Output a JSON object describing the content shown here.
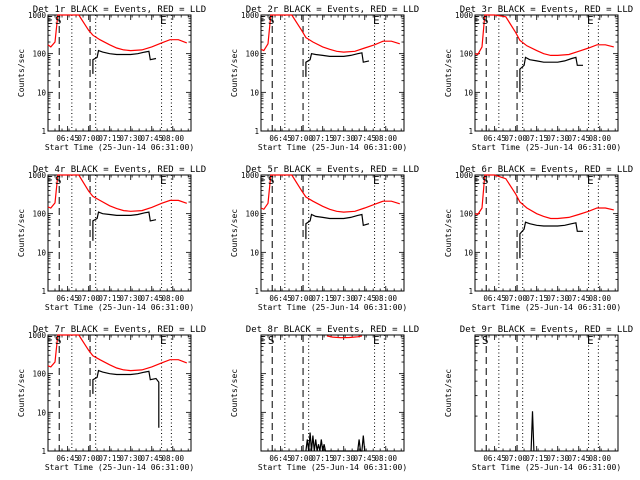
{
  "figure": {
    "xlabel": "Start Time (25-Jun-14 06:31:00)",
    "ylabel": "Counts/sec",
    "colors": {
      "events": "#000000",
      "lld": "#ff0000",
      "background": "#ffffff"
    }
  },
  "chart_data": [
    {
      "type": "line",
      "title": "Det 1r BLACK = Events, RED = LLD",
      "xlim": [
        "06:31",
        "08:13"
      ],
      "ylim": [
        1,
        1000
      ],
      "yscale": "log",
      "xticks": [
        "06:45",
        "07:00",
        "07:15",
        "07:30",
        "07:45",
        "08:00"
      ],
      "yticks": [
        "1",
        "10",
        "100",
        "1000"
      ],
      "markers": [
        {
          "text": "E",
          "x": "06:32"
        },
        {
          "text": "S",
          "x": "06:38"
        },
        {
          "text": "E",
          "x": "07:53"
        }
      ],
      "dashed_lines": [
        "06:39",
        "07:01"
      ],
      "dotted_lines": [
        "06:48",
        "07:05",
        "07:52",
        "07:59"
      ],
      "series": [
        {
          "color": "#ff0000",
          "x": [
            "06:31",
            "06:33",
            "06:36",
            "06:38",
            "06:40",
            "06:45",
            "06:53",
            "07:00",
            "07:03",
            "07:08",
            "07:15",
            "07:20",
            "07:25",
            "07:30",
            "07:38",
            "07:45",
            "07:52",
            "07:58",
            "08:04",
            "08:10"
          ],
          "y": [
            170,
            150,
            200,
            1000,
            1000,
            1000,
            1000,
            400,
            300,
            230,
            170,
            140,
            125,
            120,
            125,
            150,
            190,
            230,
            230,
            190
          ]
        },
        {
          "color": "#000000",
          "x": [
            "07:03",
            "07:03",
            "07:06",
            "07:07",
            "07:10",
            "07:15",
            "07:20",
            "07:25",
            "07:30",
            "07:35",
            "07:40",
            "07:43",
            "07:44",
            "07:48"
          ],
          "y": [
            30,
            70,
            80,
            120,
            110,
            100,
            95,
            95,
            95,
            100,
            110,
            115,
            70,
            75
          ]
        }
      ]
    },
    {
      "type": "line",
      "title": "Det 2r BLACK = Events, RED = LLD",
      "xlim": [
        "06:31",
        "08:13"
      ],
      "ylim": [
        1,
        1000
      ],
      "yscale": "log",
      "xticks": [
        "06:45",
        "07:00",
        "07:15",
        "07:30",
        "07:45",
        "08:00"
      ],
      "yticks": [
        "1",
        "10",
        "100",
        "1000"
      ],
      "markers": [
        {
          "text": "E",
          "x": "06:32"
        },
        {
          "text": "S",
          "x": "06:38"
        },
        {
          "text": "E",
          "x": "07:53"
        }
      ],
      "dashed_lines": [
        "06:39",
        "07:01"
      ],
      "dotted_lines": [
        "06:48",
        "07:05",
        "07:52",
        "07:59"
      ],
      "series": [
        {
          "color": "#ff0000",
          "x": [
            "06:31",
            "06:33",
            "06:36",
            "06:38",
            "06:40",
            "06:45",
            "06:53",
            "07:00",
            "07:03",
            "07:08",
            "07:15",
            "07:20",
            "07:25",
            "07:30",
            "07:38",
            "07:45",
            "07:52",
            "07:58",
            "08:04",
            "08:10"
          ],
          "y": [
            130,
            120,
            180,
            1000,
            1000,
            1000,
            1000,
            400,
            260,
            200,
            150,
            130,
            115,
            110,
            115,
            140,
            170,
            210,
            210,
            180
          ]
        },
        {
          "color": "#000000",
          "x": [
            "07:03",
            "07:03",
            "07:06",
            "07:07",
            "07:10",
            "07:15",
            "07:20",
            "07:25",
            "07:30",
            "07:35",
            "07:40",
            "07:43",
            "07:44",
            "07:48"
          ],
          "y": [
            25,
            60,
            70,
            100,
            95,
            90,
            85,
            85,
            85,
            90,
            100,
            105,
            60,
            65
          ]
        }
      ]
    },
    {
      "type": "line",
      "title": "Det 3r BLACK = Events, RED = LLD",
      "xlim": [
        "06:31",
        "08:13"
      ],
      "ylim": [
        1,
        1000
      ],
      "yscale": "log",
      "xticks": [
        "06:45",
        "07:00",
        "07:15",
        "07:30",
        "07:45",
        "08:00"
      ],
      "yticks": [
        "1",
        "10",
        "100",
        "1000"
      ],
      "markers": [
        {
          "text": "E",
          "x": "06:32"
        },
        {
          "text": "S",
          "x": "06:38"
        },
        {
          "text": "E",
          "x": "07:53"
        }
      ],
      "dashed_lines": [
        "06:39",
        "07:01"
      ],
      "dotted_lines": [
        "06:48",
        "07:05",
        "07:52",
        "07:59"
      ],
      "series": [
        {
          "color": "#ff0000",
          "x": [
            "06:31",
            "06:33",
            "06:36",
            "06:38",
            "06:40",
            "06:45",
            "06:53",
            "07:00",
            "07:03",
            "07:08",
            "07:15",
            "07:20",
            "07:25",
            "07:30",
            "07:38",
            "07:45",
            "07:52",
            "07:58",
            "08:04",
            "08:10"
          ],
          "y": [
            100,
            95,
            150,
            1000,
            1000,
            1000,
            900,
            350,
            220,
            160,
            120,
            100,
            90,
            90,
            95,
            115,
            140,
            170,
            170,
            150
          ]
        },
        {
          "color": "#000000",
          "x": [
            "07:03",
            "07:03",
            "07:06",
            "07:07",
            "07:10",
            "07:15",
            "07:20",
            "07:25",
            "07:30",
            "07:35",
            "07:40",
            "07:43",
            "07:44",
            "07:48"
          ],
          "y": [
            10,
            40,
            50,
            80,
            70,
            65,
            60,
            60,
            60,
            65,
            75,
            80,
            50,
            50
          ]
        }
      ]
    },
    {
      "type": "line",
      "title": "Det 4r BLACK = Events, RED = LLD",
      "xlim": [
        "06:31",
        "08:13"
      ],
      "ylim": [
        1,
        1000
      ],
      "yscale": "log",
      "xticks": [
        "06:45",
        "07:00",
        "07:15",
        "07:30",
        "07:45",
        "08:00"
      ],
      "yticks": [
        "1",
        "10",
        "100",
        "1000"
      ],
      "markers": [
        {
          "text": "E",
          "x": "06:32"
        },
        {
          "text": "S",
          "x": "06:38"
        },
        {
          "text": "E",
          "x": "07:53"
        }
      ],
      "dashed_lines": [
        "06:39",
        "07:01"
      ],
      "dotted_lines": [
        "06:48",
        "07:05",
        "07:52",
        "07:59"
      ],
      "series": [
        {
          "color": "#ff0000",
          "x": [
            "06:31",
            "06:33",
            "06:36",
            "06:38",
            "06:40",
            "06:45",
            "06:53",
            "07:00",
            "07:03",
            "07:08",
            "07:15",
            "07:20",
            "07:25",
            "07:30",
            "07:38",
            "07:45",
            "07:52",
            "07:58",
            "08:04",
            "08:10"
          ],
          "y": [
            150,
            140,
            190,
            1000,
            1000,
            1000,
            1000,
            380,
            280,
            220,
            160,
            135,
            120,
            115,
            120,
            145,
            185,
            220,
            220,
            185
          ]
        },
        {
          "color": "#000000",
          "x": [
            "07:03",
            "07:03",
            "07:06",
            "07:07",
            "07:10",
            "07:15",
            "07:20",
            "07:25",
            "07:30",
            "07:35",
            "07:40",
            "07:43",
            "07:44",
            "07:48"
          ],
          "y": [
            20,
            65,
            75,
            110,
            100,
            95,
            90,
            90,
            90,
            95,
            105,
            110,
            65,
            70
          ]
        }
      ]
    },
    {
      "type": "line",
      "title": "Det 5r BLACK = Events, RED = LLD",
      "xlim": [
        "06:31",
        "08:13"
      ],
      "ylim": [
        1,
        1000
      ],
      "yscale": "log",
      "xticks": [
        "06:45",
        "07:00",
        "07:15",
        "07:30",
        "07:45",
        "08:00"
      ],
      "yticks": [
        "1",
        "10",
        "100",
        "1000"
      ],
      "markers": [
        {
          "text": "E",
          "x": "06:32"
        },
        {
          "text": "S",
          "x": "06:38"
        },
        {
          "text": "E",
          "x": "07:53"
        }
      ],
      "dashed_lines": [
        "06:39",
        "07:01"
      ],
      "dotted_lines": [
        "06:48",
        "07:05",
        "07:52",
        "07:59"
      ],
      "series": [
        {
          "color": "#ff0000",
          "x": [
            "06:31",
            "06:33",
            "06:36",
            "06:38",
            "06:40",
            "06:45",
            "06:53",
            "07:00",
            "07:03",
            "07:08",
            "07:15",
            "07:20",
            "07:25",
            "07:30",
            "07:38",
            "07:45",
            "07:52",
            "07:58",
            "08:04",
            "08:10"
          ],
          "y": [
            140,
            130,
            185,
            1000,
            1000,
            1000,
            1000,
            390,
            270,
            210,
            155,
            130,
            115,
            110,
            115,
            140,
            175,
            210,
            210,
            180
          ]
        },
        {
          "color": "#000000",
          "x": [
            "07:03",
            "07:03",
            "07:06",
            "07:07",
            "07:10",
            "07:15",
            "07:20",
            "07:25",
            "07:30",
            "07:35",
            "07:40",
            "07:43",
            "07:44",
            "07:48"
          ],
          "y": [
            22,
            55,
            65,
            95,
            85,
            80,
            75,
            75,
            75,
            80,
            90,
            95,
            50,
            55
          ]
        }
      ]
    },
    {
      "type": "line",
      "title": "Det 6r BLACK = Events, RED = LLD",
      "xlim": [
        "06:31",
        "08:13"
      ],
      "ylim": [
        1,
        1000
      ],
      "yscale": "log",
      "xticks": [
        "06:45",
        "07:00",
        "07:15",
        "07:30",
        "07:45",
        "08:00"
      ],
      "yticks": [
        "1",
        "10",
        "100",
        "1000"
      ],
      "markers": [
        {
          "text": "E",
          "x": "06:32"
        },
        {
          "text": "S",
          "x": "06:38"
        },
        {
          "text": "E",
          "x": "07:53"
        }
      ],
      "dashed_lines": [
        "06:39",
        "07:01"
      ],
      "dotted_lines": [
        "06:48",
        "07:05",
        "07:52",
        "07:59"
      ],
      "series": [
        {
          "color": "#ff0000",
          "x": [
            "06:31",
            "06:33",
            "06:36",
            "06:38",
            "06:40",
            "06:45",
            "06:53",
            "07:00",
            "07:03",
            "07:08",
            "07:15",
            "07:20",
            "07:25",
            "07:30",
            "07:38",
            "07:45",
            "07:52",
            "07:58",
            "08:04",
            "08:10"
          ],
          "y": [
            100,
            95,
            140,
            1000,
            1000,
            1000,
            800,
            320,
            200,
            140,
            100,
            85,
            75,
            75,
            80,
            95,
            115,
            140,
            140,
            125
          ]
        },
        {
          "color": "#000000",
          "x": [
            "07:03",
            "07:03",
            "07:06",
            "07:07",
            "07:10",
            "07:15",
            "07:20",
            "07:25",
            "07:30",
            "07:35",
            "07:40",
            "07:43",
            "07:44",
            "07:48"
          ],
          "y": [
            7,
            30,
            40,
            60,
            55,
            50,
            48,
            48,
            48,
            50,
            55,
            58,
            35,
            35
          ]
        }
      ]
    },
    {
      "type": "line",
      "title": "Det 7r BLACK = Events, RED = LLD",
      "xlim": [
        "06:31",
        "08:13"
      ],
      "ylim": [
        1,
        1000
      ],
      "yscale": "log",
      "xticks": [
        "06:45",
        "07:00",
        "07:15",
        "07:30",
        "07:45",
        "08:00"
      ],
      "yticks": [
        "1",
        "10",
        "100",
        "1000"
      ],
      "markers": [
        {
          "text": "E",
          "x": "06:32"
        },
        {
          "text": "S",
          "x": "06:38"
        },
        {
          "text": "E",
          "x": "07:53"
        }
      ],
      "dashed_lines": [
        "06:39",
        "07:01"
      ],
      "dotted_lines": [
        "06:48",
        "07:05",
        "07:52",
        "07:59"
      ],
      "series": [
        {
          "color": "#ff0000",
          "x": [
            "06:31",
            "06:33",
            "06:36",
            "06:38",
            "06:40",
            "06:45",
            "06:53",
            "07:00",
            "07:03",
            "07:08",
            "07:15",
            "07:20",
            "07:25",
            "07:30",
            "07:38",
            "07:45",
            "07:52",
            "07:58",
            "08:04",
            "08:10"
          ],
          "y": [
            160,
            150,
            200,
            1000,
            1000,
            1000,
            1000,
            400,
            290,
            230,
            170,
            140,
            125,
            120,
            125,
            150,
            190,
            230,
            230,
            190
          ]
        },
        {
          "color": "#000000",
          "x": [
            "07:03",
            "07:03",
            "07:06",
            "07:07",
            "07:10",
            "07:15",
            "07:20",
            "07:25",
            "07:30",
            "07:35",
            "07:40",
            "07:43",
            "07:44",
            "07:48",
            "07:50",
            "07:50"
          ],
          "y": [
            30,
            70,
            80,
            120,
            110,
            100,
            95,
            95,
            95,
            100,
            110,
            115,
            70,
            75,
            60,
            4
          ]
        }
      ]
    },
    {
      "type": "line",
      "title": "Det 8r BLACK = Events, RED = LLD",
      "xlim": [
        "06:31",
        "08:13"
      ],
      "ylim": [
        1,
        1000
      ],
      "yscale": "log",
      "xticks": [
        "06:45",
        "07:00",
        "07:15",
        "07:30",
        "07:45",
        "08:00"
      ],
      "yticks": [],
      "markers": [
        {
          "text": "E",
          "x": "06:32"
        },
        {
          "text": "S",
          "x": "06:38"
        },
        {
          "text": "E",
          "x": "07:53"
        }
      ],
      "dashed_lines": [
        "06:39",
        "07:01"
      ],
      "dotted_lines": [
        "06:48",
        "07:05",
        "07:52",
        "07:59"
      ],
      "series": [
        {
          "color": "#ff0000",
          "x": [
            "07:18",
            "07:22",
            "07:28",
            "07:34",
            "07:40",
            "07:43"
          ],
          "y": [
            950,
            880,
            850,
            860,
            900,
            950
          ]
        },
        {
          "color": "#000000",
          "x": [
            "07:03",
            "07:04",
            "07:05",
            "07:06",
            "07:07",
            "07:08",
            "07:09",
            "07:10",
            "07:11",
            "07:12",
            "07:13",
            "07:14",
            "07:15",
            "07:16",
            "07:17",
            "07:40",
            "07:41",
            "07:42",
            "07:43",
            "07:44",
            "07:45"
          ],
          "y": [
            1,
            2,
            1,
            3,
            1,
            2.5,
            1,
            2,
            1,
            1.5,
            1,
            2,
            1,
            1.5,
            1,
            1,
            2,
            1,
            1,
            2.5,
            1
          ]
        }
      ]
    },
    {
      "type": "line",
      "title": "Det 9r BLACK = Events, RED = LLD",
      "xlim": [
        "06:31",
        "08:13"
      ],
      "ylim": [
        1,
        10
      ],
      "yscale": "log",
      "xticks": [
        "06:45",
        "07:00",
        "07:15",
        "07:30",
        "07:45",
        "08:00"
      ],
      "yticks": [],
      "markers": [
        {
          "text": "E",
          "x": "06:32"
        },
        {
          "text": "S",
          "x": "06:38"
        },
        {
          "text": "E",
          "x": "07:53"
        }
      ],
      "dashed_lines": [
        "06:39",
        "07:01"
      ],
      "dotted_lines": [
        "06:48",
        "07:05",
        "07:52",
        "07:59"
      ],
      "series": [
        {
          "color": "#000000",
          "x": [
            "07:11",
            "07:12",
            "07:13"
          ],
          "y": [
            1,
            2.2,
            1
          ]
        }
      ]
    }
  ]
}
